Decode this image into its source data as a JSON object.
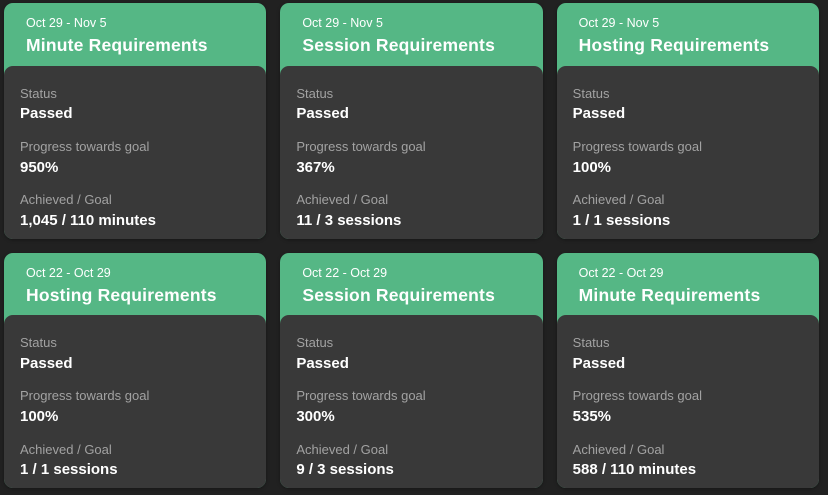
{
  "colors": {
    "page_background": "#212121",
    "card_header_green": "#55b785",
    "card_body_gray": "#393939",
    "label_gray": "#a2a2a2",
    "text_white": "#ffffff"
  },
  "labels": {
    "status": "Status",
    "progress": "Progress towards goal",
    "achieved": "Achieved / Goal"
  },
  "cards": [
    {
      "date_range": "Oct 29 - Nov 5",
      "title": "Minute Requirements",
      "status": "Passed",
      "progress": "950%",
      "achieved_goal": "1,045 / 110 minutes"
    },
    {
      "date_range": "Oct 29 - Nov 5",
      "title": "Session Requirements",
      "status": "Passed",
      "progress": "367%",
      "achieved_goal": "11 / 3 sessions"
    },
    {
      "date_range": "Oct 29 - Nov 5",
      "title": "Hosting Requirements",
      "status": "Passed",
      "progress": "100%",
      "achieved_goal": "1 / 1 sessions"
    },
    {
      "date_range": "Oct 22 - Oct 29",
      "title": "Hosting Requirements",
      "status": "Passed",
      "progress": "100%",
      "achieved_goal": "1 / 1 sessions"
    },
    {
      "date_range": "Oct 22 - Oct 29",
      "title": "Session Requirements",
      "status": "Passed",
      "progress": "300%",
      "achieved_goal": "9 / 3 sessions"
    },
    {
      "date_range": "Oct 22 - Oct 29",
      "title": "Minute Requirements",
      "status": "Passed",
      "progress": "535%",
      "achieved_goal": "588 / 110 minutes"
    }
  ]
}
